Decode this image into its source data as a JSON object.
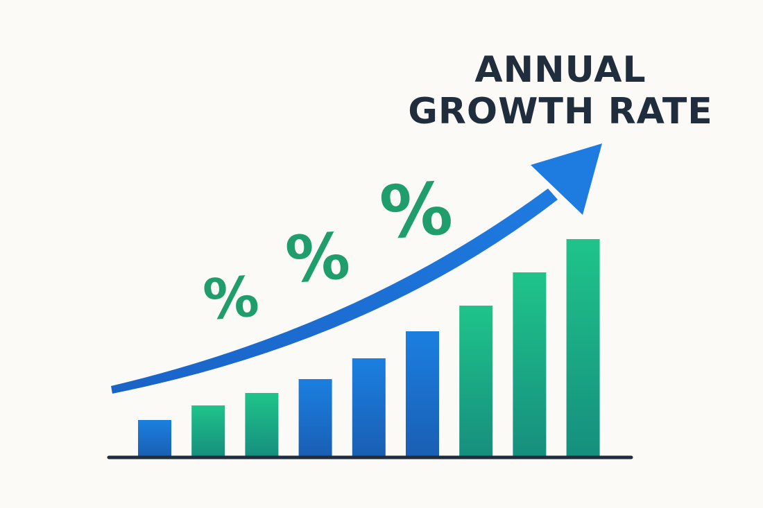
{
  "chart_data": {
    "type": "bar",
    "title": [
      "ANNUAL",
      "GROWTH RATE"
    ],
    "xlabel": "",
    "ylabel": "",
    "categories": [
      "",
      "",
      "",
      "",
      "",
      "",
      "",
      "",
      ""
    ],
    "values": [
      52,
      73,
      91,
      111,
      141,
      180,
      217,
      265,
      313
    ],
    "ylim": [
      0,
      330
    ],
    "grid": false,
    "bar_styles": [
      "blue",
      "green",
      "green",
      "blue",
      "blue",
      "blue",
      "green",
      "green",
      "green"
    ],
    "trend_arrow": {
      "direction": "up",
      "color": "#1d6fd8"
    },
    "percent_symbols": [
      "%",
      "%",
      "%"
    ]
  },
  "colors": {
    "background": "#fbfaf7",
    "title": "#1f2d3d",
    "axis": "#1f2d3d",
    "blue_top": "#1b7fe0",
    "blue_bottom": "#1a5fb4",
    "green_top": "#1fc48a",
    "green_bottom": "#168f7e",
    "percent": "#1f9d6b",
    "arrow": "#1d6fd8"
  }
}
